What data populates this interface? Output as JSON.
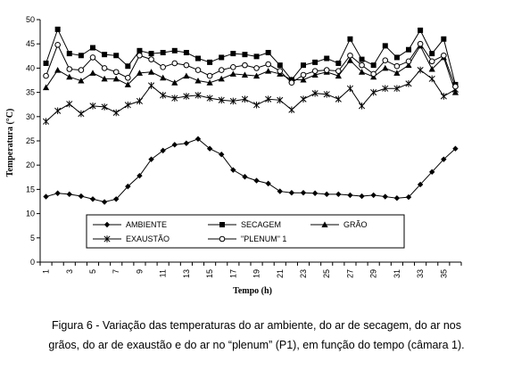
{
  "chart_data": {
    "type": "line",
    "xlabel": "Tempo (h)",
    "ylabel": "Temperatura (°C)",
    "xlim": [
      1,
      36
    ],
    "ylim": [
      0,
      50
    ],
    "yticks": [
      0,
      5,
      10,
      15,
      20,
      25,
      30,
      35,
      40,
      45,
      50
    ],
    "xticks": [
      1,
      3,
      5,
      7,
      9,
      11,
      13,
      15,
      17,
      19,
      21,
      23,
      25,
      27,
      29,
      31,
      33,
      35
    ],
    "grid": false,
    "legend_position": "inside-bottom",
    "x": [
      1,
      2,
      3,
      4,
      5,
      6,
      7,
      8,
      9,
      10,
      11,
      12,
      13,
      14,
      15,
      16,
      17,
      18,
      19,
      20,
      21,
      22,
      23,
      24,
      25,
      26,
      27,
      28,
      29,
      30,
      31,
      32,
      33,
      34,
      35,
      36
    ],
    "series": [
      {
        "name": "AMBIENTE",
        "marker": "diamond",
        "values": [
          13.5,
          14.2,
          14.0,
          13.6,
          13.0,
          12.4,
          13.0,
          15.6,
          17.8,
          21.2,
          23.0,
          24.2,
          24.5,
          25.4,
          23.4,
          22.2,
          19.0,
          17.6,
          16.8,
          16.2,
          14.6,
          14.3,
          14.3,
          14.2,
          14.0,
          14.0,
          13.8,
          13.6,
          13.8,
          13.5,
          13.2,
          13.4,
          16.0,
          18.6,
          21.2,
          23.4
        ]
      },
      {
        "name": "SECAGEM",
        "marker": "square",
        "values": [
          41.0,
          48.0,
          43.0,
          42.6,
          44.2,
          42.8,
          42.6,
          40.4,
          43.6,
          43.0,
          43.2,
          43.6,
          43.2,
          42.0,
          41.2,
          42.2,
          43.0,
          42.8,
          42.4,
          43.2,
          40.6,
          37.6,
          40.6,
          41.2,
          42.0,
          41.0,
          46.0,
          41.8,
          40.6,
          44.6,
          42.2,
          43.8,
          47.8,
          43.0,
          46.0,
          36.6
        ]
      },
      {
        "name": "GRÃO",
        "marker": "triangle",
        "values": [
          36.0,
          39.6,
          38.2,
          37.4,
          39.0,
          37.8,
          37.8,
          36.6,
          39.0,
          39.2,
          38.0,
          37.0,
          38.4,
          37.4,
          37.0,
          37.8,
          38.8,
          38.6,
          38.4,
          39.4,
          38.8,
          37.6,
          37.6,
          38.6,
          39.2,
          38.4,
          41.6,
          39.2,
          38.2,
          40.0,
          39.0,
          40.6,
          44.6,
          39.8,
          42.2,
          35.0
        ]
      },
      {
        "name": "EXAUSTÃO",
        "marker": "star",
        "values": [
          29.0,
          31.2,
          32.6,
          30.6,
          32.2,
          32.0,
          30.8,
          32.4,
          33.2,
          36.4,
          34.4,
          33.8,
          34.2,
          34.4,
          33.8,
          33.4,
          33.2,
          33.6,
          32.4,
          33.6,
          33.4,
          31.4,
          33.6,
          34.8,
          34.6,
          33.6,
          35.8,
          32.2,
          35.0,
          35.8,
          35.8,
          36.8,
          39.6,
          37.8,
          34.2,
          35.6
        ]
      },
      {
        "name": "\"PLENUM\" 1",
        "marker": "circle",
        "values": [
          38.4,
          44.8,
          39.8,
          39.6,
          42.2,
          40.0,
          39.2,
          38.0,
          42.6,
          41.8,
          40.2,
          41.0,
          40.6,
          39.6,
          38.4,
          39.6,
          40.2,
          40.6,
          40.0,
          40.8,
          39.4,
          37.0,
          38.6,
          39.4,
          39.6,
          39.4,
          42.6,
          40.6,
          38.8,
          41.6,
          40.4,
          41.4,
          45.0,
          41.4,
          42.6,
          36.2
        ]
      }
    ]
  },
  "caption": {
    "line1": "Figura 6 - Variação das temperaturas do ar ambiente, do ar de secagem, do ar nos",
    "line2": "grãos, do ar de exaustão e do ar no “plenum” (P1), em função do tempo (câmara 1)."
  }
}
